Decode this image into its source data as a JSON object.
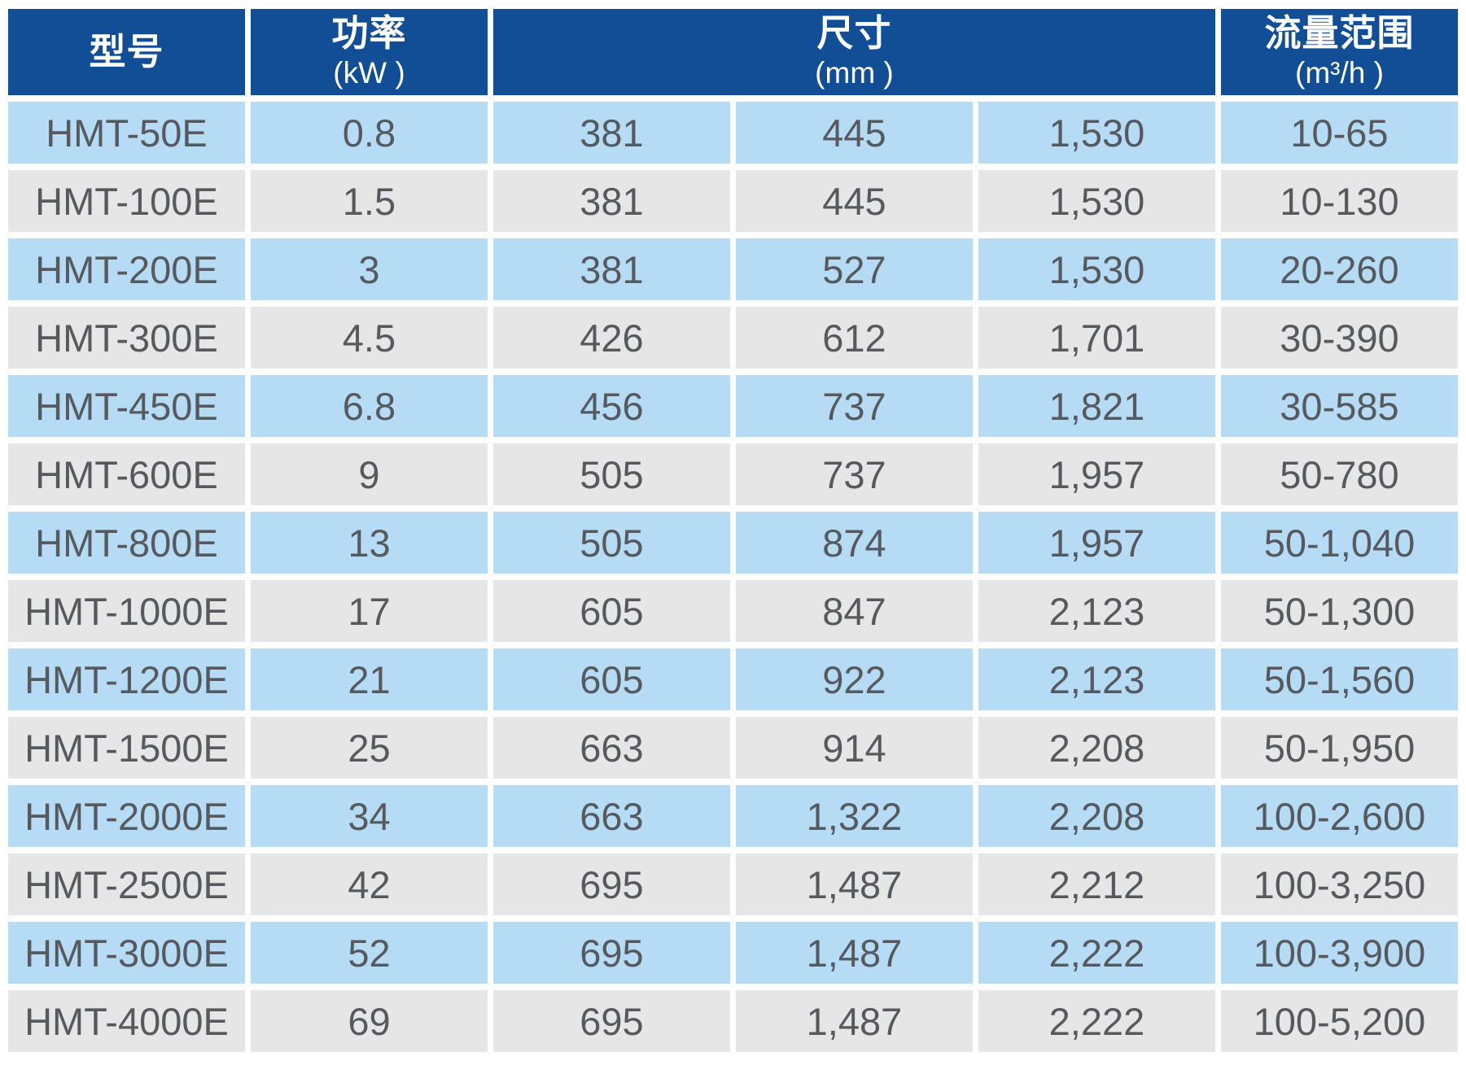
{
  "table": {
    "header": {
      "model": {
        "title": "型号",
        "unit": ""
      },
      "power": {
        "title": "功率",
        "unit": "(kW )"
      },
      "dimensions": {
        "title": "尺寸",
        "unit": "(mm )"
      },
      "flow_range": {
        "title": "流量范围",
        "unit": "(m³/h )"
      }
    },
    "rows": [
      [
        "HMT-50E",
        "0.8",
        "381",
        "445",
        "1,530",
        "10-65"
      ],
      [
        "HMT-100E",
        "1.5",
        "381",
        "445",
        "1,530",
        "10-130"
      ],
      [
        "HMT-200E",
        "3",
        "381",
        "527",
        "1,530",
        "20-260"
      ],
      [
        "HMT-300E",
        "4.5",
        "426",
        "612",
        "1,701",
        "30-390"
      ],
      [
        "HMT-450E",
        "6.8",
        "456",
        "737",
        "1,821",
        "30-585"
      ],
      [
        "HMT-600E",
        "9",
        "505",
        "737",
        "1,957",
        "50-780"
      ],
      [
        "HMT-800E",
        "13",
        "505",
        "874",
        "1,957",
        "50-1,040"
      ],
      [
        "HMT-1000E",
        "17",
        "605",
        "847",
        "2,123",
        "50-1,300"
      ],
      [
        "HMT-1200E",
        "21",
        "605",
        "922",
        "2,123",
        "50-1,560"
      ],
      [
        "HMT-1500E",
        "25",
        "663",
        "914",
        "2,208",
        "50-1,950"
      ],
      [
        "HMT-2000E",
        "34",
        "663",
        "1,322",
        "2,208",
        "100-2,600"
      ],
      [
        "HMT-2500E",
        "42",
        "695",
        "1,487",
        "2,212",
        "100-3,250"
      ],
      [
        "HMT-3000E",
        "52",
        "695",
        "1,487",
        "2,222",
        "100-3,900"
      ],
      [
        "HMT-4000E",
        "69",
        "695",
        "1,487",
        "2,222",
        "100-5,200"
      ]
    ]
  },
  "colors": {
    "header_bg": "#124E96",
    "row_blue": "#B5DCF4",
    "row_gray": "#E6E6E6",
    "header_text": "#FFFFFF",
    "body_text": "#565A5F"
  }
}
